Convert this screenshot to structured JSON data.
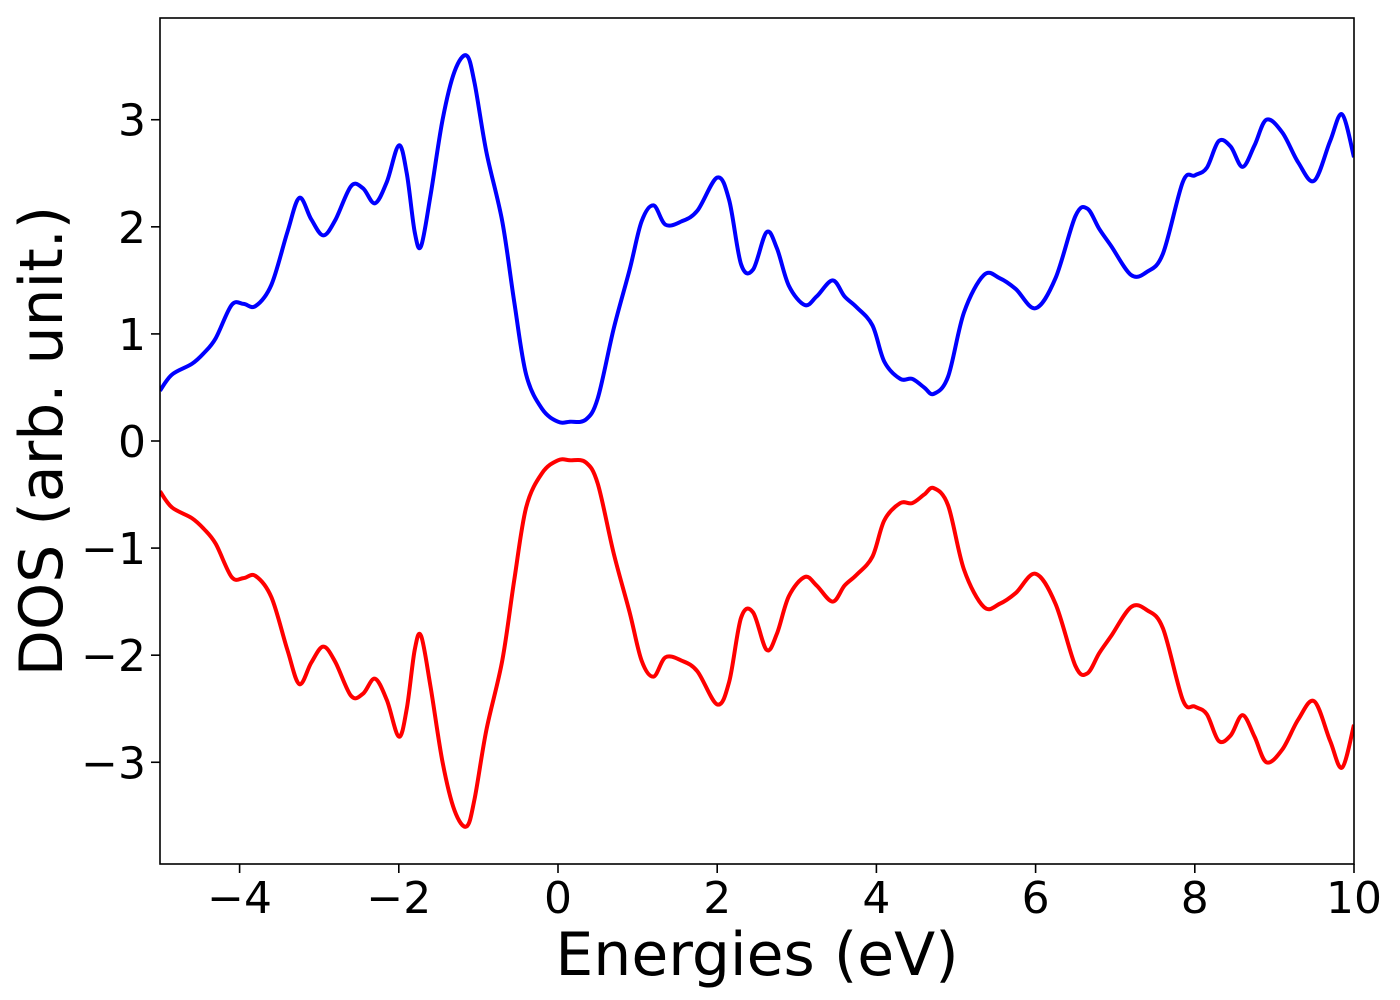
{
  "chart_data": {
    "type": "line",
    "title": "",
    "xlabel": "Energies (eV)",
    "ylabel": "DOS (arb. unit.)",
    "xlim": [
      -5,
      10
    ],
    "ylim": [
      -3.95,
      3.95
    ],
    "xticks": [
      -4,
      -2,
      0,
      2,
      4,
      6,
      8,
      10
    ],
    "xtick_labels": [
      "−4",
      "−2",
      "0",
      "2",
      "4",
      "6",
      "8",
      "10"
    ],
    "yticks": [
      -3,
      -2,
      -1,
      0,
      1,
      2,
      3
    ],
    "ytick_labels": [
      "−3",
      "−2",
      "−1",
      "0",
      "1",
      "2",
      "3"
    ],
    "grid": false,
    "legend": "none",
    "series": [
      {
        "color": "#0000ff",
        "points": [
          [
            -5,
            0.47
          ],
          [
            -4.85,
            0.62
          ],
          [
            -4.6,
            0.72
          ],
          [
            -4.45,
            0.82
          ],
          [
            -4.3,
            0.96
          ],
          [
            -4.1,
            1.27
          ],
          [
            -3.95,
            1.28
          ],
          [
            -3.8,
            1.26
          ],
          [
            -3.6,
            1.46
          ],
          [
            -3.4,
            1.95
          ],
          [
            -3.25,
            2.27
          ],
          [
            -3.1,
            2.07
          ],
          [
            -2.95,
            1.92
          ],
          [
            -2.8,
            2.06
          ],
          [
            -2.6,
            2.38
          ],
          [
            -2.45,
            2.36
          ],
          [
            -2.3,
            2.22
          ],
          [
            -2.15,
            2.42
          ],
          [
            -2.0,
            2.76
          ],
          [
            -1.9,
            2.5
          ],
          [
            -1.8,
            1.95
          ],
          [
            -1.72,
            1.82
          ],
          [
            -1.6,
            2.3
          ],
          [
            -1.45,
            3.0
          ],
          [
            -1.3,
            3.45
          ],
          [
            -1.15,
            3.6
          ],
          [
            -1.05,
            3.35
          ],
          [
            -0.9,
            2.7
          ],
          [
            -0.7,
            2.05
          ],
          [
            -0.55,
            1.3
          ],
          [
            -0.4,
            0.62
          ],
          [
            -0.2,
            0.3
          ],
          [
            0.0,
            0.18
          ],
          [
            0.15,
            0.18
          ],
          [
            0.35,
            0.2
          ],
          [
            0.5,
            0.4
          ],
          [
            0.7,
            1.05
          ],
          [
            0.9,
            1.6
          ],
          [
            1.05,
            2.05
          ],
          [
            1.2,
            2.2
          ],
          [
            1.35,
            2.02
          ],
          [
            1.55,
            2.05
          ],
          [
            1.75,
            2.15
          ],
          [
            2.0,
            2.46
          ],
          [
            2.15,
            2.25
          ],
          [
            2.3,
            1.65
          ],
          [
            2.45,
            1.6
          ],
          [
            2.62,
            1.95
          ],
          [
            2.75,
            1.8
          ],
          [
            2.9,
            1.45
          ],
          [
            3.1,
            1.27
          ],
          [
            3.25,
            1.35
          ],
          [
            3.45,
            1.5
          ],
          [
            3.6,
            1.35
          ],
          [
            3.75,
            1.25
          ],
          [
            3.95,
            1.08
          ],
          [
            4.1,
            0.74
          ],
          [
            4.3,
            0.58
          ],
          [
            4.45,
            0.58
          ],
          [
            4.6,
            0.5
          ],
          [
            4.72,
            0.44
          ],
          [
            4.9,
            0.6
          ],
          [
            5.1,
            1.2
          ],
          [
            5.35,
            1.55
          ],
          [
            5.55,
            1.52
          ],
          [
            5.75,
            1.42
          ],
          [
            6.0,
            1.24
          ],
          [
            6.25,
            1.52
          ],
          [
            6.5,
            2.1
          ],
          [
            6.65,
            2.17
          ],
          [
            6.8,
            1.98
          ],
          [
            6.95,
            1.82
          ],
          [
            7.2,
            1.55
          ],
          [
            7.4,
            1.58
          ],
          [
            7.6,
            1.75
          ],
          [
            7.85,
            2.42
          ],
          [
            8.0,
            2.48
          ],
          [
            8.15,
            2.55
          ],
          [
            8.3,
            2.8
          ],
          [
            8.45,
            2.75
          ],
          [
            8.6,
            2.56
          ],
          [
            8.75,
            2.76
          ],
          [
            8.9,
            3.0
          ],
          [
            9.1,
            2.88
          ],
          [
            9.3,
            2.6
          ],
          [
            9.5,
            2.43
          ],
          [
            9.7,
            2.8
          ],
          [
            9.85,
            3.05
          ],
          [
            10.0,
            2.65
          ]
        ]
      },
      {
        "color": "#ff0000",
        "points": [
          [
            -5,
            -0.47
          ],
          [
            -4.85,
            -0.62
          ],
          [
            -4.6,
            -0.72
          ],
          [
            -4.45,
            -0.82
          ],
          [
            -4.3,
            -0.96
          ],
          [
            -4.1,
            -1.27
          ],
          [
            -3.95,
            -1.28
          ],
          [
            -3.8,
            -1.26
          ],
          [
            -3.6,
            -1.46
          ],
          [
            -3.4,
            -1.95
          ],
          [
            -3.25,
            -2.27
          ],
          [
            -3.1,
            -2.07
          ],
          [
            -2.95,
            -1.92
          ],
          [
            -2.8,
            -2.06
          ],
          [
            -2.6,
            -2.38
          ],
          [
            -2.45,
            -2.36
          ],
          [
            -2.3,
            -2.22
          ],
          [
            -2.15,
            -2.42
          ],
          [
            -2.0,
            -2.76
          ],
          [
            -1.9,
            -2.5
          ],
          [
            -1.8,
            -1.95
          ],
          [
            -1.72,
            -1.82
          ],
          [
            -1.6,
            -2.3
          ],
          [
            -1.45,
            -3.0
          ],
          [
            -1.3,
            -3.45
          ],
          [
            -1.15,
            -3.6
          ],
          [
            -1.05,
            -3.35
          ],
          [
            -0.9,
            -2.7
          ],
          [
            -0.7,
            -2.05
          ],
          [
            -0.55,
            -1.3
          ],
          [
            -0.4,
            -0.62
          ],
          [
            -0.2,
            -0.3
          ],
          [
            0.0,
            -0.18
          ],
          [
            0.15,
            -0.18
          ],
          [
            0.35,
            -0.2
          ],
          [
            0.5,
            -0.4
          ],
          [
            0.7,
            -1.05
          ],
          [
            0.9,
            -1.6
          ],
          [
            1.05,
            -2.05
          ],
          [
            1.2,
            -2.2
          ],
          [
            1.35,
            -2.02
          ],
          [
            1.55,
            -2.05
          ],
          [
            1.75,
            -2.15
          ],
          [
            2.0,
            -2.46
          ],
          [
            2.15,
            -2.25
          ],
          [
            2.3,
            -1.65
          ],
          [
            2.45,
            -1.6
          ],
          [
            2.62,
            -1.95
          ],
          [
            2.75,
            -1.8
          ],
          [
            2.9,
            -1.45
          ],
          [
            3.1,
            -1.27
          ],
          [
            3.25,
            -1.35
          ],
          [
            3.45,
            -1.5
          ],
          [
            3.6,
            -1.35
          ],
          [
            3.75,
            -1.25
          ],
          [
            3.95,
            -1.08
          ],
          [
            4.1,
            -0.74
          ],
          [
            4.3,
            -0.58
          ],
          [
            4.45,
            -0.58
          ],
          [
            4.6,
            -0.5
          ],
          [
            4.72,
            -0.44
          ],
          [
            4.9,
            -0.6
          ],
          [
            5.1,
            -1.2
          ],
          [
            5.35,
            -1.55
          ],
          [
            5.55,
            -1.52
          ],
          [
            5.75,
            -1.42
          ],
          [
            6.0,
            -1.24
          ],
          [
            6.25,
            -1.52
          ],
          [
            6.5,
            -2.1
          ],
          [
            6.65,
            -2.17
          ],
          [
            6.8,
            -1.98
          ],
          [
            6.95,
            -1.82
          ],
          [
            7.2,
            -1.55
          ],
          [
            7.4,
            -1.58
          ],
          [
            7.6,
            -1.75
          ],
          [
            7.85,
            -2.42
          ],
          [
            8.0,
            -2.48
          ],
          [
            8.15,
            -2.55
          ],
          [
            8.3,
            -2.8
          ],
          [
            8.45,
            -2.75
          ],
          [
            8.6,
            -2.56
          ],
          [
            8.75,
            -2.76
          ],
          [
            8.9,
            -3.0
          ],
          [
            9.1,
            -2.88
          ],
          [
            9.3,
            -2.6
          ],
          [
            9.5,
            -2.43
          ],
          [
            9.7,
            -2.8
          ],
          [
            9.85,
            -3.05
          ],
          [
            10.0,
            -2.65
          ]
        ]
      }
    ]
  }
}
